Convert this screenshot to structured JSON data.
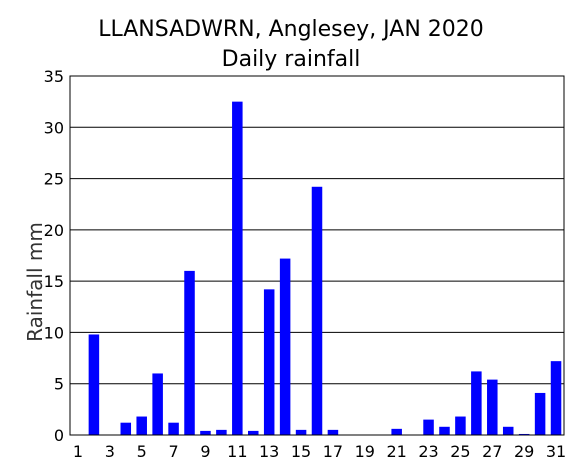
{
  "chart_data": {
    "type": "bar",
    "title": "LLANSADWRN, Anglesey, JAN 2020",
    "subtitle": "Daily rainfall",
    "xlabel": "",
    "ylabel": "Rainfall mm",
    "ylim": [
      0,
      35
    ],
    "yticks": [
      0,
      5,
      10,
      15,
      20,
      25,
      30,
      35
    ],
    "xticks": [
      1,
      3,
      5,
      7,
      9,
      11,
      13,
      15,
      17,
      19,
      21,
      23,
      25,
      27,
      29,
      31
    ],
    "grid": true,
    "legend": "none",
    "bar_color": "#0000ff",
    "categories": [
      1,
      2,
      3,
      4,
      5,
      6,
      7,
      8,
      9,
      10,
      11,
      12,
      13,
      14,
      15,
      16,
      17,
      18,
      19,
      20,
      21,
      22,
      23,
      24,
      25,
      26,
      27,
      28,
      29,
      30,
      31
    ],
    "values": [
      0,
      9.8,
      0,
      1.2,
      1.8,
      6.0,
      1.2,
      16.0,
      0.4,
      0.5,
      32.5,
      0.4,
      14.2,
      17.2,
      0.5,
      24.2,
      0.5,
      0,
      0,
      0,
      0.6,
      0,
      1.5,
      0.8,
      1.8,
      6.2,
      5.4,
      0.8,
      0.1,
      4.1,
      7.2
    ]
  }
}
